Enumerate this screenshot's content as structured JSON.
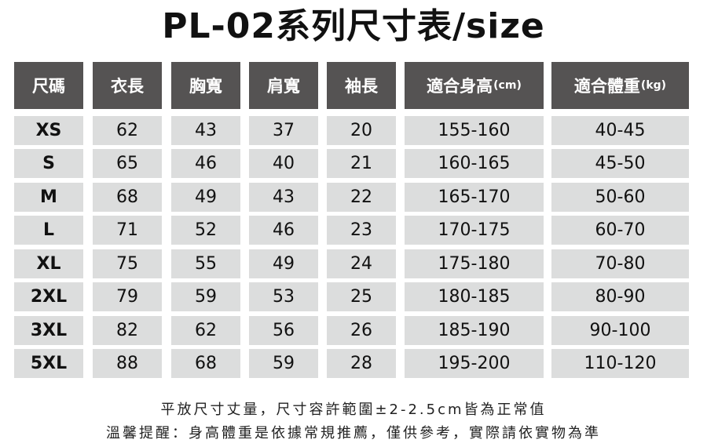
{
  "title": "PL-02系列尺寸表/size",
  "table": {
    "headers": [
      {
        "label": "尺碼",
        "unit": ""
      },
      {
        "label": "衣長",
        "unit": ""
      },
      {
        "label": "胸寬",
        "unit": ""
      },
      {
        "label": "肩寬",
        "unit": ""
      },
      {
        "label": "袖長",
        "unit": ""
      },
      {
        "label": "適合身高",
        "unit": "(cm)"
      },
      {
        "label": "適合體重",
        "unit": "(kg)"
      }
    ],
    "rows": [
      [
        "XS",
        "62",
        "43",
        "37",
        "20",
        "155-160",
        "40-45"
      ],
      [
        "S",
        "65",
        "46",
        "40",
        "21",
        "160-165",
        "45-50"
      ],
      [
        "M",
        "68",
        "49",
        "43",
        "22",
        "165-170",
        "50-60"
      ],
      [
        "L",
        "71",
        "52",
        "46",
        "23",
        "170-175",
        "60-70"
      ],
      [
        "XL",
        "75",
        "55",
        "49",
        "24",
        "175-180",
        "70-80"
      ],
      [
        "2XL",
        "79",
        "59",
        "53",
        "25",
        "180-185",
        "80-90"
      ],
      [
        "3XL",
        "82",
        "62",
        "56",
        "26",
        "185-190",
        "90-100"
      ],
      [
        "5XL",
        "88",
        "68",
        "59",
        "28",
        "195-200",
        "110-120"
      ]
    ]
  },
  "notes": [
    "平放尺寸丈量，尺寸容許範圍±2-2.5cm皆為正常值",
    "溫馨提醒：身高體重是依據常規推薦，僅供參考，實際請依實物為準"
  ],
  "colors": {
    "header_bg": "#555353",
    "cell_bg": "#dcdddd"
  }
}
